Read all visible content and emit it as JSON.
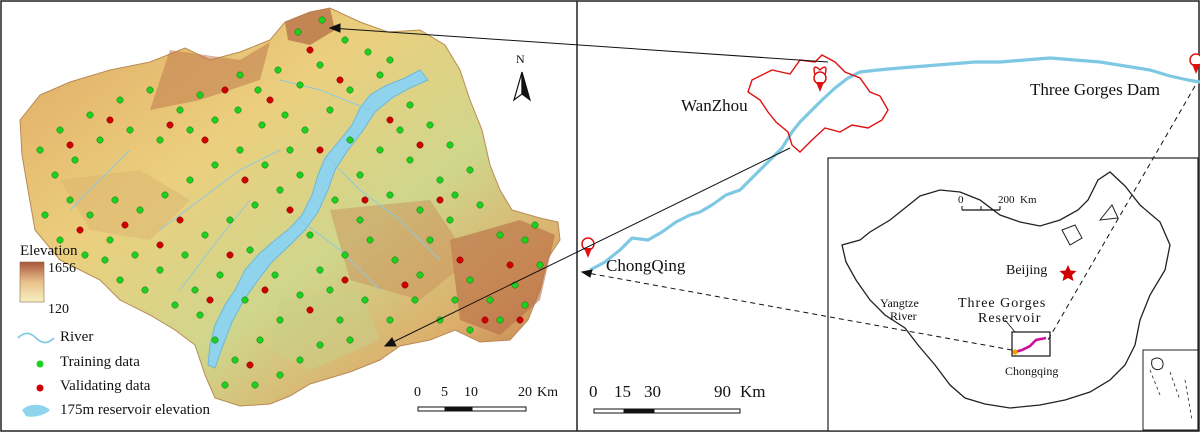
{
  "north_arrow": {
    "label": "N"
  },
  "legend": {
    "elevation_title": "Elevation",
    "elevation_max": "1656",
    "elevation_min": "120",
    "river": "River",
    "training": "Training data",
    "validating": "Validating data",
    "reservoir": "175m reservoir elevation"
  },
  "scale_left": {
    "ticks": [
      "0",
      "5",
      "10",
      "20"
    ],
    "unit": "Km"
  },
  "scale_mid": {
    "ticks": [
      "0",
      "15",
      "30",
      "90"
    ],
    "unit": "Km"
  },
  "scale_china": {
    "ticks": [
      "0",
      "200"
    ],
    "unit": "Km"
  },
  "places": {
    "wanzhou": "WanZhou",
    "three_gorges_dam": "Three Gorges Dam",
    "chongqing_mid": "ChongQing",
    "beijing": "Beijing",
    "yangtze_1": "Yangtze",
    "yangtze_2": "River",
    "tgr_1": "Three Gorges",
    "tgr_2": "Reservoir",
    "chongqing_china": "Chongqing"
  },
  "colors": {
    "river": "#7ec8e3",
    "reservoir": "#8fd3ec",
    "training": "#1fd11f",
    "validating": "#d00000",
    "wanzhou_outline": "#e01010",
    "reservoir_line": "#d0109a",
    "terrain_high": "#a8553a",
    "terrain_low": "#f3e9a8"
  }
}
